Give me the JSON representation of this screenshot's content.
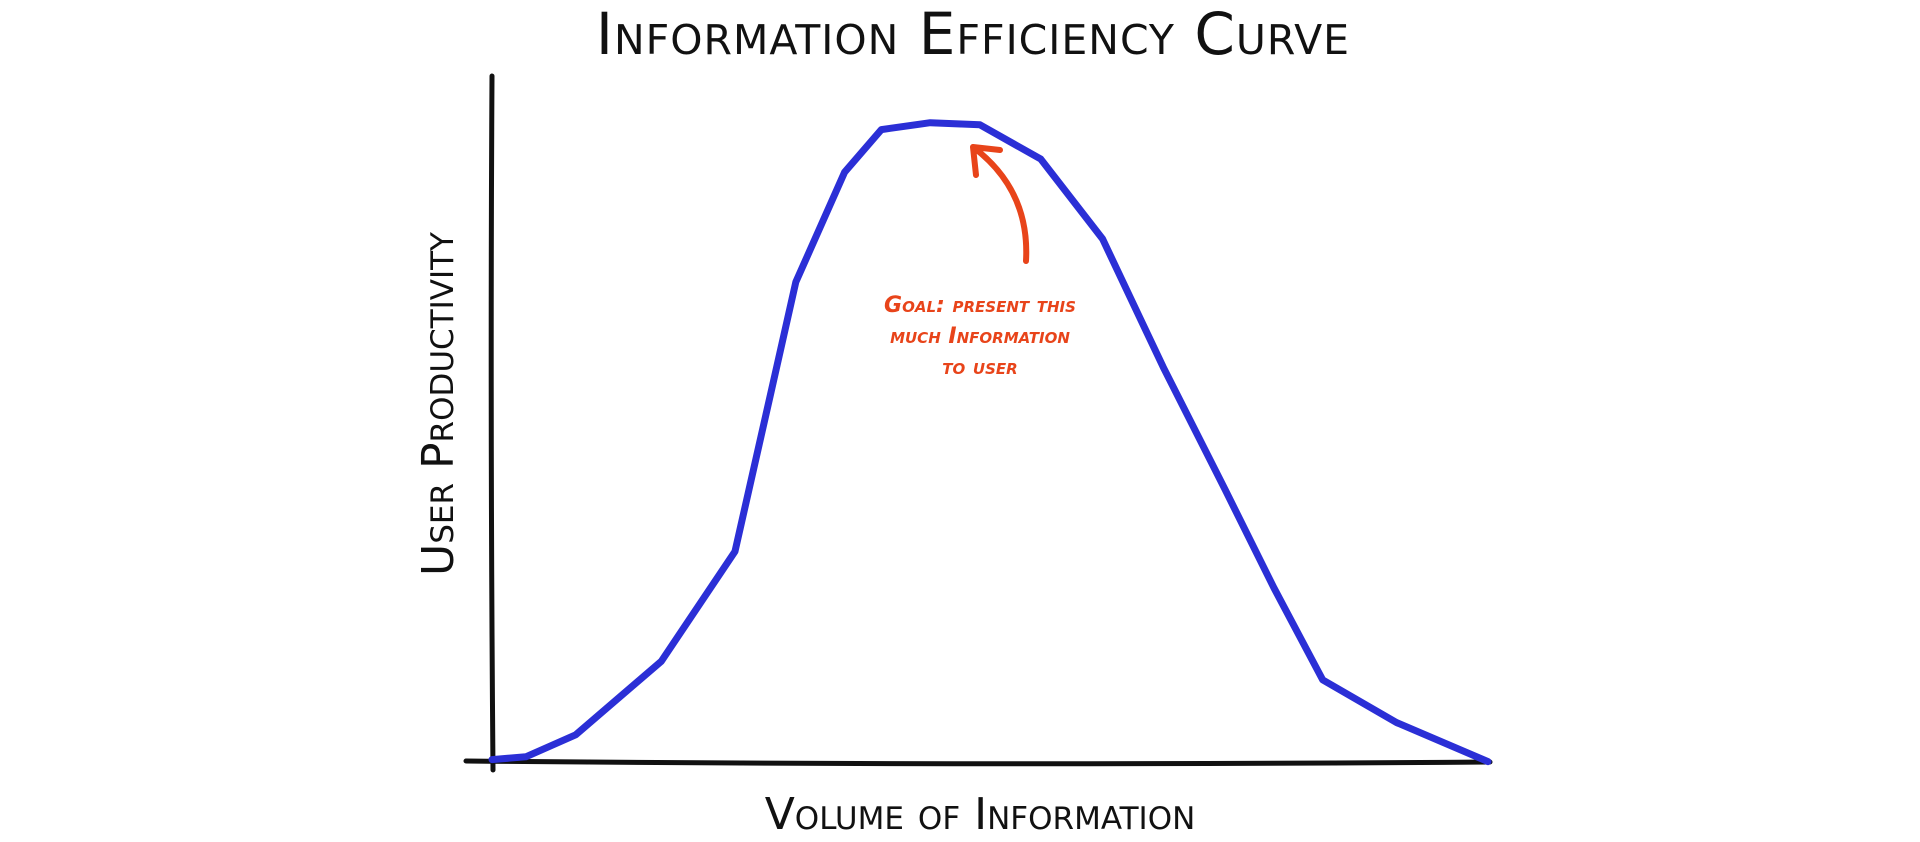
{
  "chart_data": {
    "type": "line",
    "title": "Information Efficiency Curve",
    "x_label": "Volume of Information",
    "y_label": "User Productivity",
    "annotation": [
      "Goal: present this",
      "much Information",
      "to user"
    ],
    "x": [
      0,
      3.4,
      8.4,
      17,
      24.4,
      28,
      30.5,
      35.4,
      39.1,
      44,
      49,
      55.1,
      61.3,
      67.4,
      73.6,
      78.5,
      83.4,
      90.8,
      100
    ],
    "values": [
      0.5,
      0.9,
      4.1,
      14.8,
      30.8,
      53.9,
      70,
      86,
      92.2,
      93.2,
      92.9,
      87.9,
      76.3,
      57.6,
      39.8,
      25.5,
      12.1,
      5.9,
      0.2
    ],
    "color": "#2b2fd6",
    "xlim": [
      0,
      100
    ],
    "ylim": [
      0,
      100
    ]
  }
}
